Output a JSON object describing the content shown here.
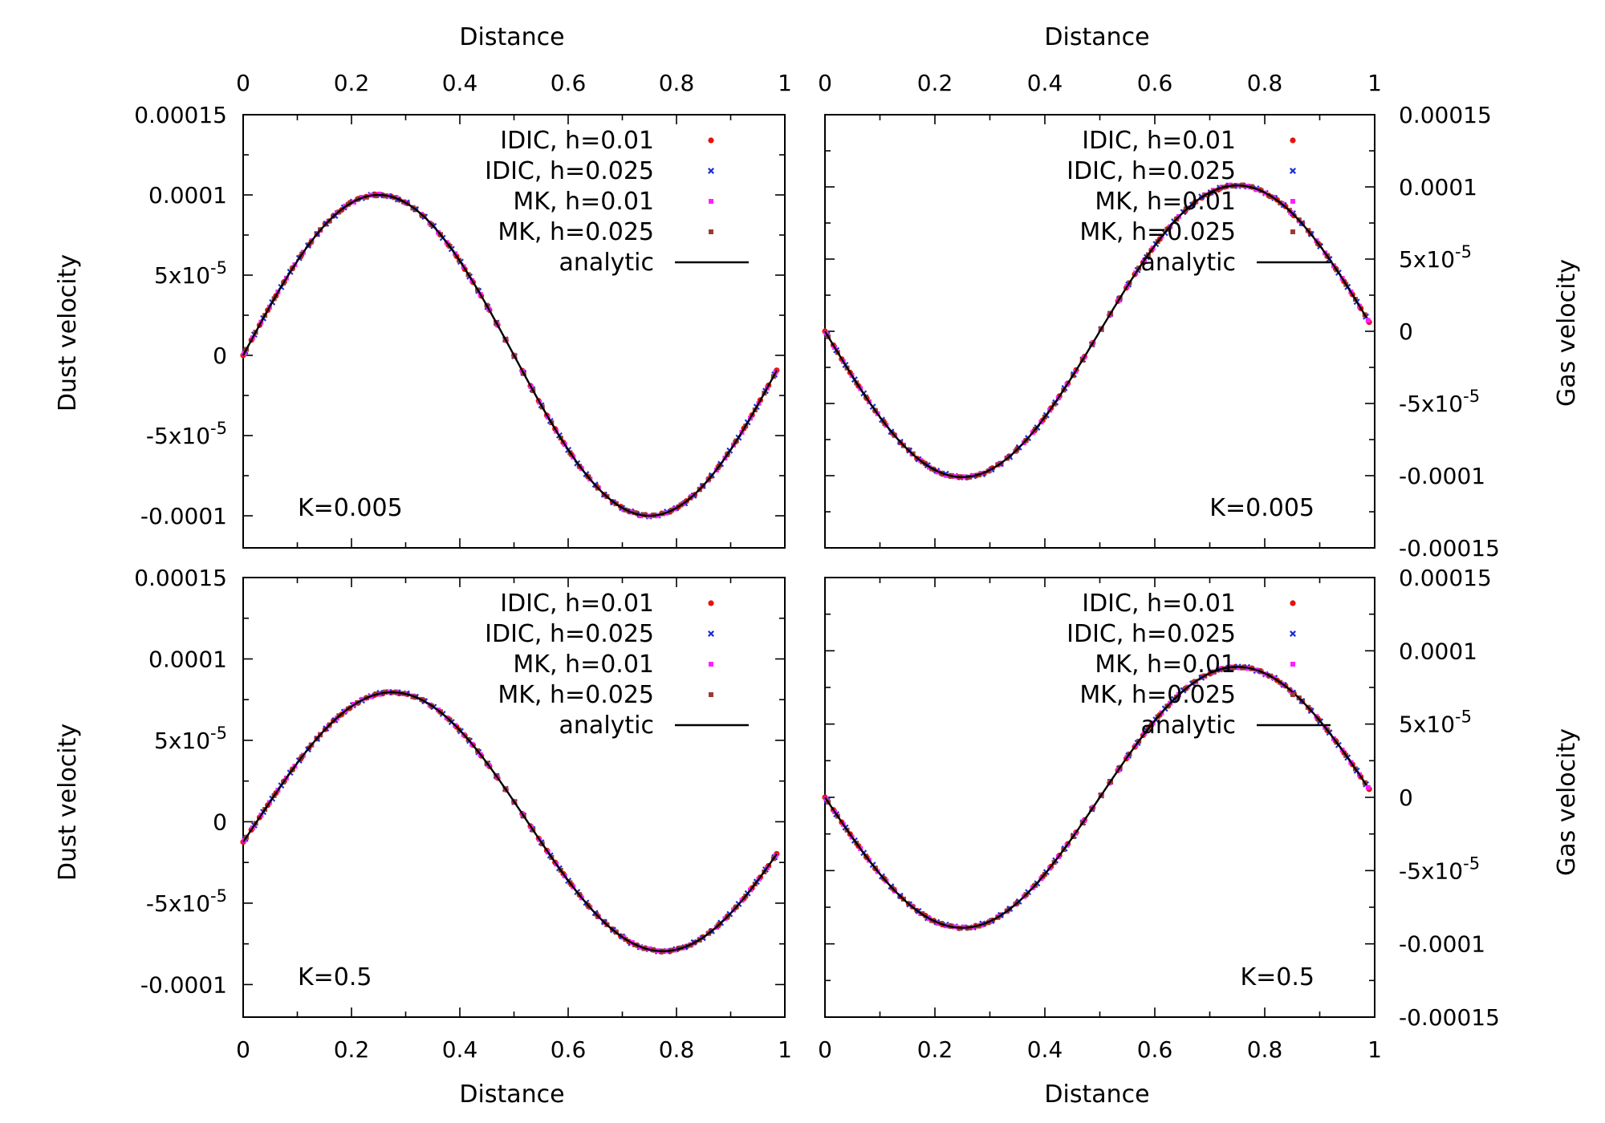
{
  "figure": {
    "top_axis_label": "Distance",
    "bottom_axis_label": "Distance",
    "left_axis_label": "Dust velocity",
    "right_axis_label": "Gas velocity"
  },
  "legend": [
    {
      "label": "IDIC, h=0.01",
      "color": "#e8120c",
      "marker": "dot"
    },
    {
      "label": "IDIC, h=0.025",
      "color": "#1e2fd6",
      "marker": "cross"
    },
    {
      "label": "MK, h=0.01",
      "color": "#ff20ff",
      "marker": "square"
    },
    {
      "label": "MK, h=0.025",
      "color": "#9c3a36",
      "marker": "square"
    },
    {
      "label": "analytic",
      "color": "#000000",
      "marker": "line"
    }
  ],
  "chart_data": [
    {
      "id": "top-left",
      "type": "scatter",
      "title": "",
      "annotation": "K=0.005",
      "xlabel": "Distance",
      "ylabel": "Dust velocity",
      "xlim": [
        0,
        1
      ],
      "ylim": [
        -0.00012,
        0.00015
      ],
      "x_ticks": [
        {
          "v": 0,
          "t": "0"
        },
        {
          "v": 0.2,
          "t": "0.2"
        },
        {
          "v": 0.4,
          "t": "0.4"
        },
        {
          "v": 0.6,
          "t": "0.6"
        },
        {
          "v": 0.8,
          "t": "0.8"
        },
        {
          "v": 1,
          "t": "1"
        }
      ],
      "y_ticks": [
        {
          "v": 0.00015,
          "t": "0.00015"
        },
        {
          "v": 0.0001,
          "t": "0.0001"
        },
        {
          "v": 5e-05,
          "t": "5x10",
          "e": "-5"
        },
        {
          "v": 0,
          "t": "0"
        },
        {
          "v": -5e-05,
          "t": "-5x10",
          "e": "-5"
        },
        {
          "v": -0.0001,
          "t": "-0.0001"
        }
      ],
      "curve": {
        "amplitude_pos": 0.0001,
        "amplitude_neg": 0.0001,
        "phase": 0,
        "x_start": 0,
        "x_end": 0.985
      },
      "series": [
        {
          "name": "IDIC, h=0.01",
          "x_start": 0.0,
          "x_end": 0.985,
          "count": 66
        },
        {
          "name": "IDIC, h=0.025",
          "x_start": 0.004,
          "x_end": 0.981,
          "count": 60
        },
        {
          "name": "MK, h=0.01",
          "x_start": 0.002,
          "x_end": 0.983,
          "count": 64
        },
        {
          "name": "MK, h=0.025",
          "x_start": 0.006,
          "x_end": 0.979,
          "count": 58
        }
      ]
    },
    {
      "id": "top-right",
      "type": "scatter",
      "title": "",
      "annotation": "K=0.005",
      "xlabel": "Distance",
      "ylabel": "Gas velocity",
      "xlim": [
        0,
        1
      ],
      "ylim": [
        -0.00015,
        0.00015
      ],
      "x_ticks": [
        {
          "v": 0,
          "t": "0"
        },
        {
          "v": 0.2,
          "t": "0.2"
        },
        {
          "v": 0.4,
          "t": "0.4"
        },
        {
          "v": 0.6,
          "t": "0.6"
        },
        {
          "v": 0.8,
          "t": "0.8"
        },
        {
          "v": 1,
          "t": "1"
        }
      ],
      "y_ticks": [
        {
          "v": 0.00015,
          "t": "0.00015"
        },
        {
          "v": 0.0001,
          "t": "0.0001"
        },
        {
          "v": 5e-05,
          "t": "5x10",
          "e": "-5"
        },
        {
          "v": 0,
          "t": "0"
        },
        {
          "v": -5e-05,
          "t": "-5x10",
          "e": "-5"
        },
        {
          "v": -0.0001,
          "t": "-0.0001"
        },
        {
          "v": -0.00015,
          "t": "-0.00015"
        }
      ],
      "curve": {
        "amplitude_pos": 0.000101,
        "amplitude_neg": 0.000101,
        "phase": 0.5,
        "x_start": 0,
        "x_end": 0.985
      },
      "series": [
        {
          "name": "IDIC, h=0.01",
          "x_start": 0.0,
          "x_end": 0.99,
          "count": 66
        },
        {
          "name": "IDIC, h=0.025",
          "x_start": 0.004,
          "x_end": 0.984,
          "count": 60
        },
        {
          "name": "MK, h=0.01",
          "x_start": 0.002,
          "x_end": 0.988,
          "count": 64
        },
        {
          "name": "MK, h=0.025",
          "x_start": 0.006,
          "x_end": 0.982,
          "count": 58
        }
      ]
    },
    {
      "id": "bottom-left",
      "type": "scatter",
      "title": "",
      "annotation": "K=0.5",
      "xlabel": "Distance",
      "ylabel": "Dust velocity",
      "xlim": [
        0,
        1
      ],
      "ylim": [
        -0.00012,
        0.00015
      ],
      "x_ticks": [
        {
          "v": 0,
          "t": "0"
        },
        {
          "v": 0.2,
          "t": "0.2"
        },
        {
          "v": 0.4,
          "t": "0.4"
        },
        {
          "v": 0.6,
          "t": "0.6"
        },
        {
          "v": 0.8,
          "t": "0.8"
        },
        {
          "v": 1,
          "t": "1"
        }
      ],
      "y_ticks": [
        {
          "v": 0.00015,
          "t": "0.00015"
        },
        {
          "v": 0.0001,
          "t": "0.0001"
        },
        {
          "v": 5e-05,
          "t": "5x10",
          "e": "-5"
        },
        {
          "v": 0,
          "t": "0"
        },
        {
          "v": -5e-05,
          "t": "-5x10",
          "e": "-5"
        },
        {
          "v": -0.0001,
          "t": "-0.0001"
        }
      ],
      "curve": {
        "amplitude_pos": 7.95e-05,
        "amplitude_neg": 7.95e-05,
        "phase": -0.025,
        "x_start": 0,
        "x_end": 0.985
      },
      "series": [
        {
          "name": "IDIC, h=0.01",
          "x_start": 0.0,
          "x_end": 0.985,
          "count": 66
        },
        {
          "name": "IDIC, h=0.025",
          "x_start": 0.004,
          "x_end": 0.981,
          "count": 60
        },
        {
          "name": "MK, h=0.01",
          "x_start": 0.002,
          "x_end": 0.983,
          "count": 64
        },
        {
          "name": "MK, h=0.025",
          "x_start": 0.006,
          "x_end": 0.979,
          "count": 58
        }
      ]
    },
    {
      "id": "bottom-right",
      "type": "scatter",
      "title": "",
      "annotation": "K=0.5",
      "xlabel": "Distance",
      "ylabel": "Gas velocity",
      "xlim": [
        0,
        1
      ],
      "ylim": [
        -0.00015,
        0.00015
      ],
      "x_ticks": [
        {
          "v": 0,
          "t": "0"
        },
        {
          "v": 0.2,
          "t": "0.2"
        },
        {
          "v": 0.4,
          "t": "0.4"
        },
        {
          "v": 0.6,
          "t": "0.6"
        },
        {
          "v": 0.8,
          "t": "0.8"
        },
        {
          "v": 1,
          "t": "1"
        }
      ],
      "y_ticks": [
        {
          "v": 0.00015,
          "t": "0.00015"
        },
        {
          "v": 0.0001,
          "t": "0.0001"
        },
        {
          "v": 5e-05,
          "t": "5x10",
          "e": "-5"
        },
        {
          "v": 0,
          "t": "0"
        },
        {
          "v": -5e-05,
          "t": "-5x10",
          "e": "-5"
        },
        {
          "v": -0.0001,
          "t": "-0.0001"
        },
        {
          "v": -0.00015,
          "t": "-0.00015"
        }
      ],
      "curve": {
        "amplitude_pos": 8.9e-05,
        "amplitude_neg": 8.9e-05,
        "phase": 0.5,
        "x_start": 0,
        "x_end": 0.985
      },
      "series": [
        {
          "name": "IDIC, h=0.01",
          "x_start": 0.0,
          "x_end": 0.99,
          "count": 66
        },
        {
          "name": "IDIC, h=0.025",
          "x_start": 0.004,
          "x_end": 0.984,
          "count": 60
        },
        {
          "name": "MK, h=0.01",
          "x_start": 0.002,
          "x_end": 0.988,
          "count": 64
        },
        {
          "name": "MK, h=0.025",
          "x_start": 0.006,
          "x_end": 0.982,
          "count": 58
        }
      ]
    }
  ]
}
